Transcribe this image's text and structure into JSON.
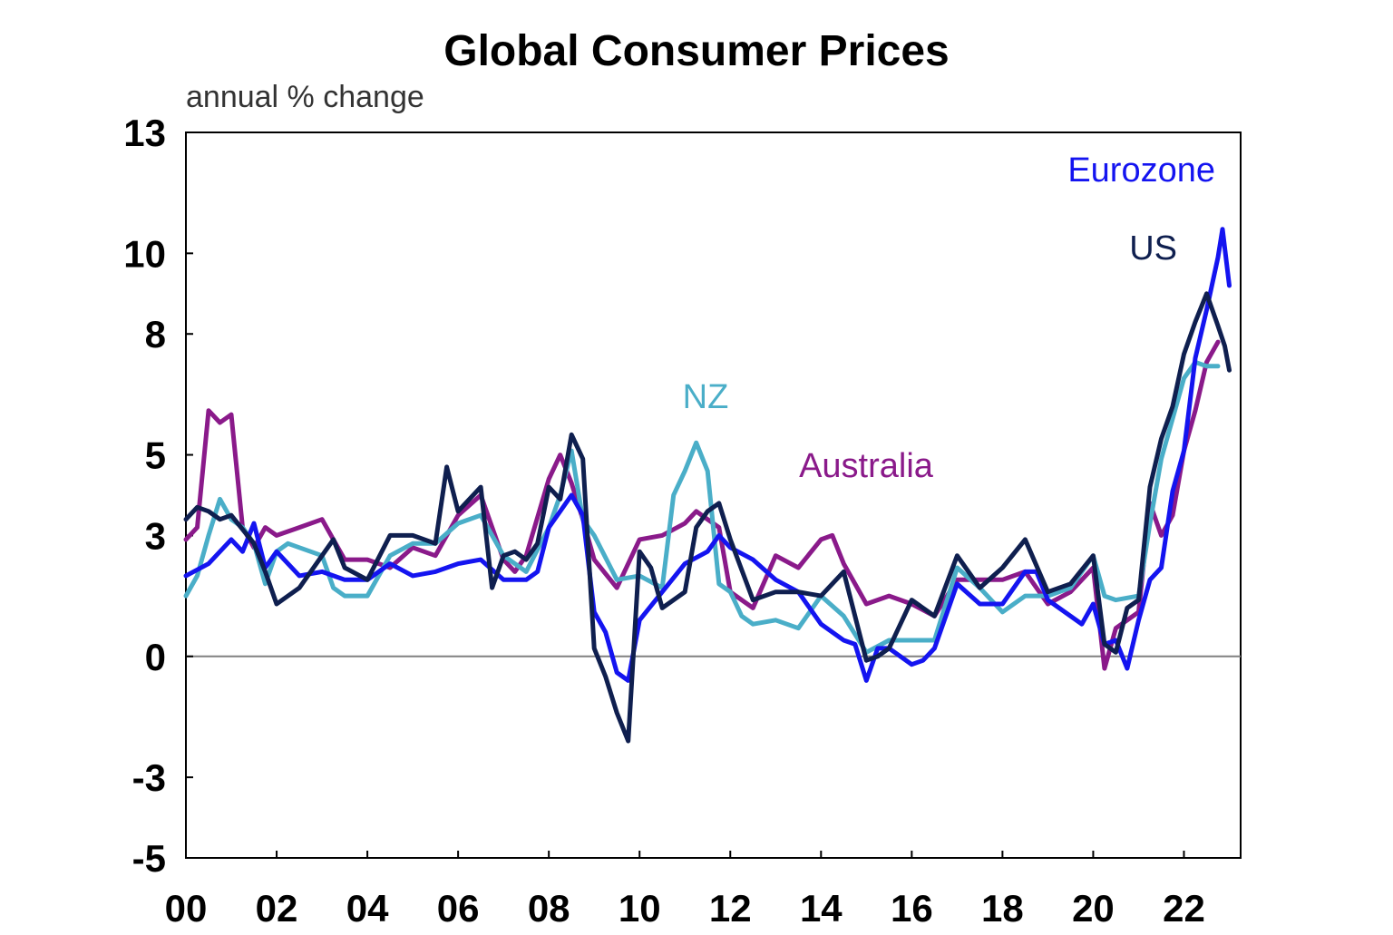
{
  "chart_data": {
    "type": "line",
    "title": "Global Consumer Prices",
    "ylabel": "annual % change",
    "xlabel": "",
    "ylim": [
      -5,
      13
    ],
    "xlim": [
      2000,
      2023.25
    ],
    "y_ticks": [
      13,
      10,
      8,
      5,
      3,
      0,
      -3,
      -5
    ],
    "y_tick_labels": [
      "13",
      "10",
      "8",
      "5",
      "3",
      "0",
      "-3",
      "-5"
    ],
    "x_ticks": [
      2000,
      2002,
      2004,
      2006,
      2008,
      2010,
      2012,
      2014,
      2016,
      2018,
      2020,
      2022
    ],
    "x_tick_labels": [
      "00",
      "02",
      "04",
      "06",
      "08",
      "10",
      "12",
      "14",
      "16",
      "18",
      "20",
      "22"
    ],
    "zero_line": true,
    "grid": false,
    "colors": {
      "Eurozone": "#1414f0",
      "US": "#0f1f4f",
      "NZ": "#4aaec8",
      "Australia": "#8a1a8a"
    },
    "series": [
      {
        "name": "Eurozone",
        "x": [
          2000.0,
          2000.5,
          2001.0,
          2001.25,
          2001.5,
          2001.75,
          2002.0,
          2002.5,
          2003.0,
          2003.5,
          2004.0,
          2004.5,
          2005.0,
          2005.5,
          2006.0,
          2006.5,
          2007.0,
          2007.5,
          2007.75,
          2008.0,
          2008.5,
          2008.75,
          2009.0,
          2009.25,
          2009.5,
          2009.75,
          2010.0,
          2010.5,
          2011.0,
          2011.5,
          2011.75,
          2012.0,
          2012.5,
          2013.0,
          2013.5,
          2014.0,
          2014.5,
          2014.75,
          2015.0,
          2015.25,
          2015.5,
          2016.0,
          2016.25,
          2016.5,
          2017.0,
          2017.5,
          2018.0,
          2018.5,
          2018.75,
          2019.0,
          2019.5,
          2019.75,
          2020.0,
          2020.25,
          2020.5,
          2020.75,
          2021.0,
          2021.25,
          2021.5,
          2021.75,
          2022.0,
          2022.25,
          2022.5,
          2022.75,
          2022.85,
          2023.0
        ],
        "values": [
          2.0,
          2.3,
          2.9,
          2.6,
          3.3,
          2.2,
          2.6,
          2.0,
          2.1,
          1.9,
          1.9,
          2.3,
          2.0,
          2.1,
          2.3,
          2.4,
          1.9,
          1.9,
          2.1,
          3.2,
          4.0,
          3.5,
          1.1,
          0.6,
          -0.4,
          -0.6,
          0.9,
          1.6,
          2.3,
          2.6,
          3.0,
          2.7,
          2.4,
          1.9,
          1.6,
          0.8,
          0.4,
          0.3,
          -0.6,
          0.2,
          0.2,
          -0.2,
          -0.1,
          0.2,
          1.8,
          1.3,
          1.3,
          2.1,
          2.1,
          1.4,
          1.0,
          0.8,
          1.3,
          0.3,
          0.4,
          -0.3,
          0.9,
          1.9,
          2.2,
          4.1,
          5.1,
          7.4,
          8.6,
          9.9,
          10.6,
          9.2
        ]
      },
      {
        "name": "US",
        "x": [
          2000.0,
          2000.25,
          2000.5,
          2000.75,
          2001.0,
          2001.5,
          2001.75,
          2002.0,
          2002.25,
          2002.5,
          2003.0,
          2003.25,
          2003.5,
          2004.0,
          2004.5,
          2005.0,
          2005.5,
          2005.75,
          2006.0,
          2006.5,
          2006.75,
          2007.0,
          2007.25,
          2007.5,
          2007.75,
          2008.0,
          2008.25,
          2008.5,
          2008.75,
          2009.0,
          2009.25,
          2009.5,
          2009.75,
          2010.0,
          2010.25,
          2010.5,
          2011.0,
          2011.25,
          2011.5,
          2011.75,
          2012.0,
          2012.5,
          2013.0,
          2013.5,
          2014.0,
          2014.5,
          2015.0,
          2015.25,
          2015.5,
          2016.0,
          2016.5,
          2017.0,
          2017.25,
          2017.5,
          2018.0,
          2018.5,
          2019.0,
          2019.5,
          2020.0,
          2020.25,
          2020.5,
          2020.75,
          2021.0,
          2021.25,
          2021.5,
          2021.75,
          2022.0,
          2022.25,
          2022.5,
          2022.75,
          2022.9,
          2023.0
        ],
        "values": [
          3.4,
          3.7,
          3.6,
          3.4,
          3.5,
          2.8,
          2.1,
          1.3,
          1.5,
          1.7,
          2.5,
          2.9,
          2.2,
          1.9,
          3.0,
          3.0,
          2.8,
          4.7,
          3.6,
          4.2,
          1.7,
          2.5,
          2.6,
          2.4,
          2.8,
          4.2,
          3.9,
          5.5,
          4.9,
          0.2,
          -0.5,
          -1.4,
          -2.1,
          2.6,
          2.2,
          1.2,
          1.6,
          3.2,
          3.6,
          3.8,
          2.9,
          1.4,
          1.6,
          1.6,
          1.5,
          2.1,
          -0.1,
          0.0,
          0.2,
          1.4,
          1.0,
          2.5,
          2.1,
          1.7,
          2.2,
          2.9,
          1.6,
          1.8,
          2.5,
          0.3,
          0.1,
          1.2,
          1.4,
          4.2,
          5.4,
          6.2,
          7.5,
          8.3,
          9.0,
          8.2,
          7.7,
          7.1
        ]
      },
      {
        "name": "NZ",
        "x": [
          2000.0,
          2000.25,
          2000.5,
          2000.75,
          2001.0,
          2001.25,
          2001.5,
          2001.75,
          2002.0,
          2002.25,
          2002.5,
          2003.0,
          2003.25,
          2003.5,
          2004.0,
          2004.5,
          2005.0,
          2005.5,
          2006.0,
          2006.5,
          2007.0,
          2007.5,
          2008.0,
          2008.25,
          2008.5,
          2008.75,
          2009.0,
          2009.5,
          2010.0,
          2010.5,
          2010.75,
          2011.0,
          2011.25,
          2011.5,
          2011.75,
          2012.0,
          2012.25,
          2012.5,
          2013.0,
          2013.5,
          2014.0,
          2014.5,
          2015.0,
          2015.5,
          2016.0,
          2016.5,
          2017.0,
          2017.5,
          2018.0,
          2018.5,
          2019.0,
          2019.5,
          2020.0,
          2020.25,
          2020.5,
          2021.0,
          2021.25,
          2021.5,
          2021.75,
          2022.0,
          2022.25,
          2022.5,
          2022.75
        ],
        "values": [
          1.5,
          2.0,
          3.0,
          3.9,
          3.4,
          3.2,
          2.8,
          1.8,
          2.6,
          2.8,
          2.7,
          2.5,
          1.7,
          1.5,
          1.5,
          2.5,
          2.8,
          2.8,
          3.3,
          3.5,
          2.5,
          2.1,
          3.2,
          4.0,
          5.1,
          3.4,
          3.0,
          1.9,
          2.0,
          1.7,
          4.0,
          4.6,
          5.3,
          4.6,
          1.8,
          1.6,
          1.0,
          0.8,
          0.9,
          0.7,
          1.5,
          1.0,
          0.1,
          0.4,
          0.4,
          0.4,
          2.2,
          1.7,
          1.1,
          1.5,
          1.5,
          1.7,
          2.5,
          1.5,
          1.4,
          1.5,
          3.3,
          4.9,
          5.9,
          6.9,
          7.3,
          7.2,
          7.2
        ]
      },
      {
        "name": "Australia",
        "x": [
          2000.0,
          2000.25,
          2000.5,
          2000.75,
          2001.0,
          2001.25,
          2001.5,
          2001.75,
          2002.0,
          2002.5,
          2003.0,
          2003.5,
          2004.0,
          2004.5,
          2005.0,
          2005.5,
          2006.0,
          2006.5,
          2007.0,
          2007.25,
          2007.5,
          2008.0,
          2008.25,
          2008.5,
          2008.75,
          2009.0,
          2009.5,
          2010.0,
          2010.5,
          2011.0,
          2011.25,
          2011.5,
          2011.75,
          2012.0,
          2012.5,
          2013.0,
          2013.5,
          2014.0,
          2014.25,
          2014.5,
          2015.0,
          2015.5,
          2016.0,
          2016.5,
          2017.0,
          2017.5,
          2018.0,
          2018.5,
          2019.0,
          2019.5,
          2020.0,
          2020.25,
          2020.5,
          2020.75,
          2021.0,
          2021.25,
          2021.5,
          2021.75,
          2022.0,
          2022.25,
          2022.5,
          2022.75
        ],
        "values": [
          2.9,
          3.2,
          6.1,
          5.8,
          6.0,
          3.2,
          2.7,
          3.2,
          3.0,
          3.2,
          3.4,
          2.4,
          2.4,
          2.2,
          2.7,
          2.5,
          3.5,
          4.0,
          2.4,
          2.1,
          2.5,
          4.4,
          5.0,
          4.3,
          3.4,
          2.4,
          1.7,
          2.9,
          3.0,
          3.3,
          3.6,
          3.4,
          3.2,
          1.6,
          1.2,
          2.5,
          2.2,
          2.9,
          3.0,
          2.3,
          1.3,
          1.5,
          1.3,
          1.0,
          1.9,
          1.9,
          1.9,
          2.1,
          1.3,
          1.6,
          2.2,
          -0.3,
          0.7,
          0.9,
          1.1,
          3.8,
          3.0,
          3.5,
          5.1,
          6.1,
          7.3,
          7.8
        ]
      }
    ],
    "series_labels": [
      {
        "name": "Eurozone",
        "text": "Eurozone"
      },
      {
        "name": "US",
        "text": "US"
      },
      {
        "name": "NZ",
        "text": "NZ"
      },
      {
        "name": "Australia",
        "text": "Australia"
      }
    ]
  }
}
